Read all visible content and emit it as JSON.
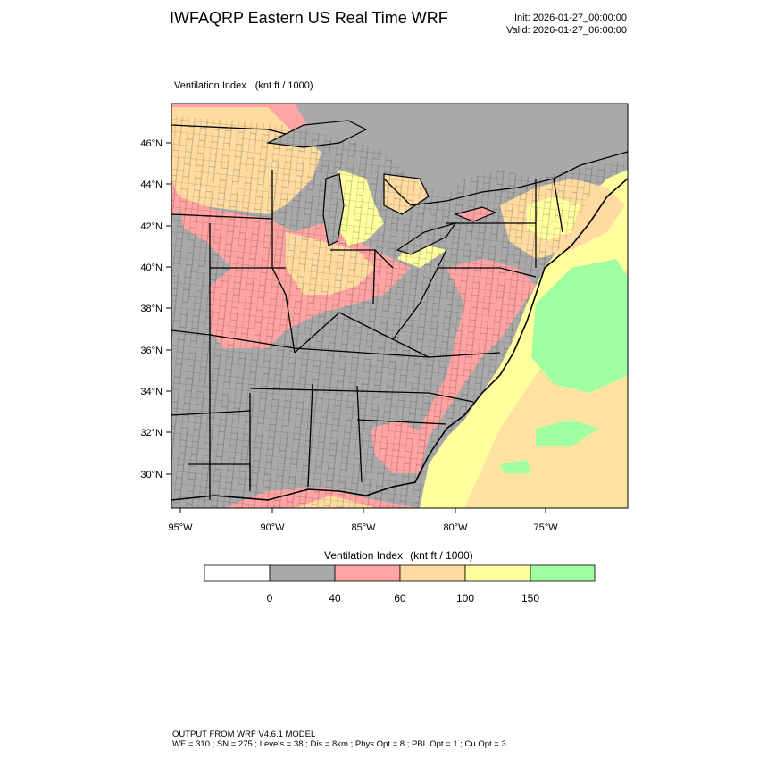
{
  "header": {
    "title": "IWFAQRP Eastern US Real Time WRF",
    "init": "Init: 2026-01-27_00:00:00",
    "valid": "Valid: 2026-01-27_06:00:00"
  },
  "plot": {
    "field_name": "Ventilation Index",
    "field_units": "(knt ft / 1000)"
  },
  "axes": {
    "lat_labels": [
      "46°N",
      "44°N",
      "42°N",
      "40°N",
      "38°N",
      "36°N",
      "34°N",
      "32°N",
      "30°N"
    ],
    "lon_labels": [
      "95°W",
      "90°W",
      "85°W",
      "80°W",
      "75°W"
    ]
  },
  "colorbar": {
    "title_name": "Ventilation Index",
    "title_units": "(knt ft / 1000)",
    "bins": [
      {
        "color": "#ffffff"
      },
      {
        "color": "#a9a9a9"
      },
      {
        "color": "#ffa3a3"
      },
      {
        "color": "#fedba0"
      },
      {
        "color": "#ffff9e"
      },
      {
        "color": "#a0ffa0"
      }
    ],
    "tick_labels": [
      "0",
      "40",
      "60",
      "100",
      "150"
    ]
  },
  "colors": {
    "gray": "#a9a9a9",
    "pink": "#ffa3a3",
    "orange": "#fedba0",
    "yellow": "#ffff9e",
    "green": "#a0ffa0"
  },
  "footer": {
    "line1": "OUTPUT FROM WRF V4.6.1 MODEL",
    "line2": "WE = 310 ; SN = 275 ; Levels = 38 ; Dis = 8km ; Phys Opt = 8 ; PBL Opt = 1 ; Cu Opt = 3"
  }
}
